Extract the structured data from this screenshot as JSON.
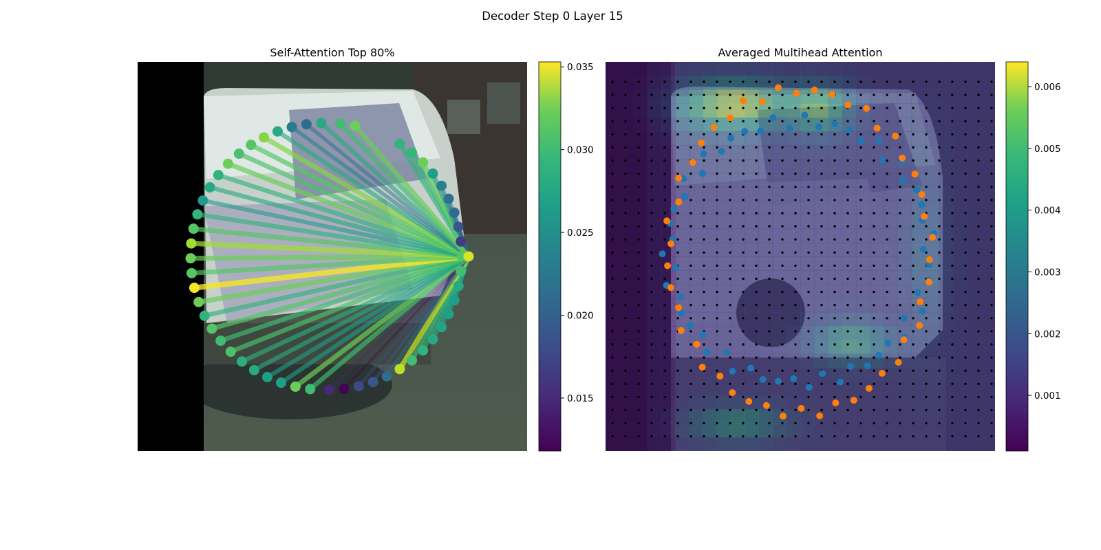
{
  "figure_title": "Decoder Step 0 Layer 15",
  "chart_data": [
    {
      "type": "heatmap",
      "title": "Self-Attention Top 80%",
      "background": "street photo of a white van (left margin padded black)",
      "description": "64 contour points on a polygon; lines from the selected rightmost point to other points, colored by attention weight",
      "colormap": "viridis",
      "colorbar": {
        "range": [
          0.0118,
          0.0353
        ],
        "ticks": [
          "0.015",
          "0.020",
          "0.025",
          "0.030",
          "0.035"
        ],
        "tick_values": [
          0.015,
          0.02,
          0.025,
          0.03,
          0.035
        ]
      },
      "point_weights": [
        0.027,
        0.0275,
        0.03,
        0.025,
        0.022,
        0.0205,
        0.02,
        0.018,
        0.016,
        0.029,
        0.028,
        0.026,
        0.025,
        0.025,
        0.0255,
        0.026,
        0.027,
        0.028,
        0.033,
        0.02,
        0.018,
        0.017,
        0.012,
        0.0145,
        0.028,
        0.03,
        0.025,
        0.025,
        0.026,
        0.0265,
        0.0285,
        0.028,
        0.029,
        0.027,
        0.03,
        0.035,
        0.029,
        0.03,
        0.032,
        0.029,
        0.027,
        0.0245,
        0.026,
        0.027,
        0.03,
        0.0285,
        0.029,
        0.031,
        0.026,
        0.0215,
        0.02,
        0.026,
        0.028,
        0.03
      ],
      "selected_point_weight": 0.034
    },
    {
      "type": "heatmap",
      "title": "Averaged Multihead Attention",
      "background": "street photo of a white van with attention heatmap overlay",
      "colormap": "viridis",
      "colorbar": {
        "range": [
          0.0001,
          0.0064
        ],
        "ticks": [
          "0.001",
          "0.002",
          "0.003",
          "0.004",
          "0.005",
          "0.006"
        ],
        "tick_values": [
          0.001,
          0.002,
          0.003,
          0.004,
          0.005,
          0.006
        ]
      },
      "reference_grid": "30 x 28 black dots",
      "series": [
        {
          "color": "#ff7f0e",
          "role": "predicted contour points"
        },
        {
          "color": "#1f77b4",
          "role": "reference contour points"
        }
      ]
    }
  ]
}
